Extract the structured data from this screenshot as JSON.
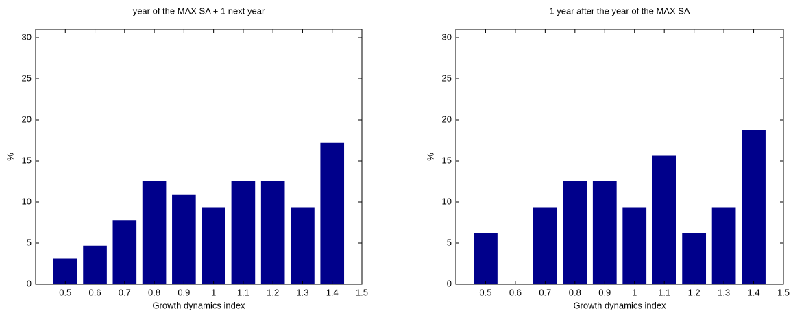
{
  "chart_data": [
    {
      "type": "bar",
      "title": "year of the MAX SA + 1 next year",
      "xlabel": "Growth dynamics index",
      "ylabel": "%",
      "x": [
        0.5,
        0.6,
        0.7,
        0.8,
        0.9,
        1,
        1.1,
        1.2,
        1.3,
        1.4
      ],
      "values": [
        3.125,
        4.6875,
        7.8125,
        12.5,
        10.9375,
        9.375,
        12.5,
        12.5,
        9.375,
        17.1875
      ],
      "color": "#00008B",
      "xlim": [
        0.4,
        1.5
      ],
      "xticks": [
        0.5,
        0.6,
        0.7,
        0.8,
        0.9,
        1,
        1.1,
        1.2,
        1.3,
        1.4,
        1.5
      ],
      "ylim": [
        0,
        31
      ],
      "yticks": [
        0,
        5,
        10,
        15,
        20,
        25,
        30
      ],
      "grid": false
    },
    {
      "type": "bar",
      "title": "1 year after the year of the MAX SA",
      "xlabel": "Growth dynamics index",
      "ylabel": "%",
      "x": [
        0.5,
        0.6,
        0.7,
        0.8,
        0.9,
        1,
        1.1,
        1.2,
        1.3,
        1.4
      ],
      "values": [
        6.25,
        0,
        9.375,
        12.5,
        12.5,
        9.375,
        15.625,
        6.25,
        9.375,
        18.75
      ],
      "color": "#00008B",
      "xlim": [
        0.4,
        1.5
      ],
      "xticks": [
        0.5,
        0.6,
        0.7,
        0.8,
        0.9,
        1,
        1.1,
        1.2,
        1.3,
        1.4,
        1.5
      ],
      "ylim": [
        0,
        31
      ],
      "yticks": [
        0,
        5,
        10,
        15,
        20,
        25,
        30
      ],
      "grid": false
    }
  ]
}
